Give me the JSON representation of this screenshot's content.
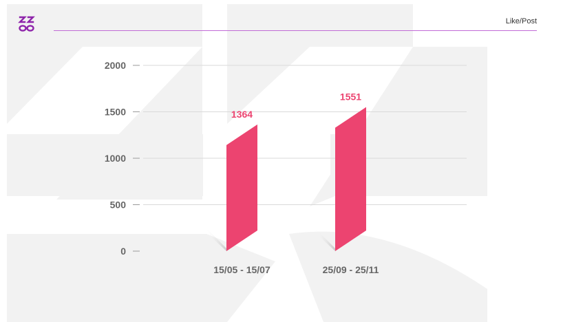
{
  "header": {
    "logo_icon": "zz-loop-logo-icon",
    "label": "Like/Post"
  },
  "colors": {
    "accent": "#8e24aa",
    "bar": "#ec4470",
    "axis_text": "#666666",
    "grid": "#d9d9d9",
    "watermark": "#f2f2f2"
  },
  "chart_data": {
    "type": "bar",
    "title": "",
    "xlabel": "",
    "ylabel": "",
    "categories": [
      "15/05 - 15/07",
      "25/09 - 25/11"
    ],
    "values": [
      1364,
      1551
    ],
    "data_labels": [
      "1364",
      "1551"
    ],
    "ylim": [
      0,
      2000
    ],
    "yticks": [
      0,
      500,
      1000,
      1500,
      2000
    ],
    "grid": true,
    "legend": "none"
  }
}
